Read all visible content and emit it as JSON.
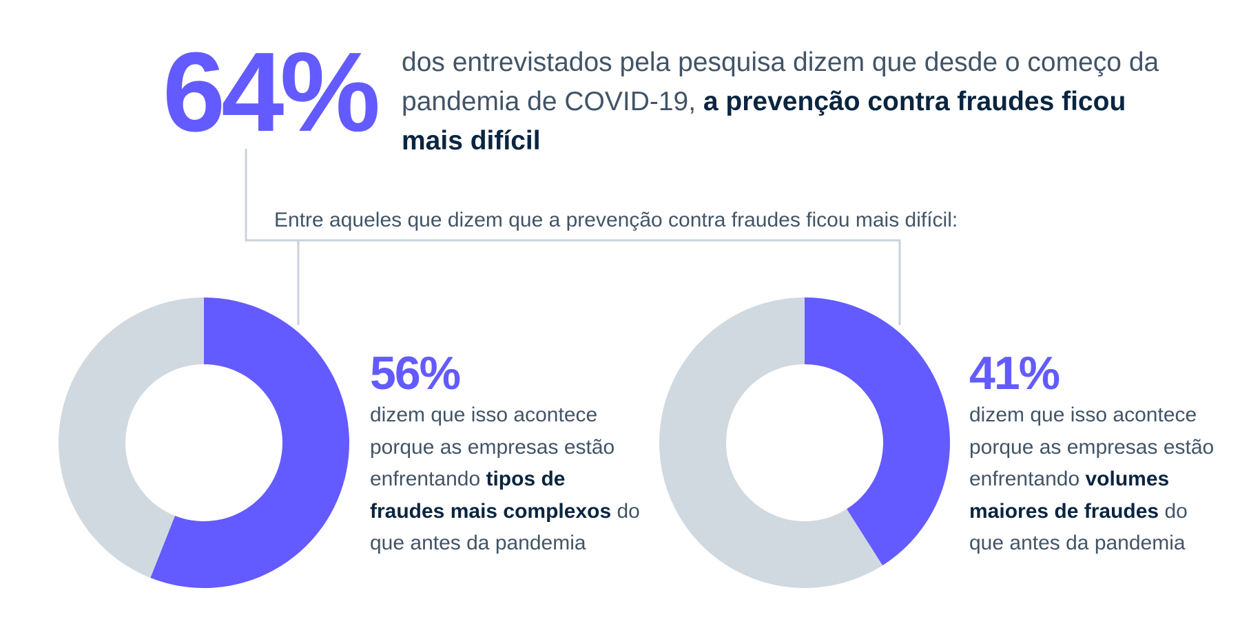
{
  "headline": {
    "value": "64%",
    "text_pre": "dos entrevistados pela pesquisa dizem que desde o começo da pandemia de COVID-19, ",
    "text_bold": "a prevenção contra fraudes ficou mais difícil"
  },
  "subheading": "Entre aqueles que dizem que a prevenção contra fraudes ficou mais difícil:",
  "colors": {
    "accent": "#635bff",
    "remainder": "#d1d9e0",
    "connector": "#c9d2dc",
    "text": "#425466",
    "text_bold": "#0a2540"
  },
  "stats": [
    {
      "value": "56%",
      "text_pre": "dizem que isso acontece porque as empresas estão enfrentando ",
      "text_bold": "tipos de fraudes mais complexos",
      "text_post": " do que antes da pandemia"
    },
    {
      "value": "41%",
      "text_pre": "dizem que isso acontece porque as empresas estão enfrentando ",
      "text_bold": "volumes maiores de fraudes",
      "text_post": " do que antes da pandemia"
    }
  ],
  "chart_data": [
    {
      "type": "pie",
      "labels": [
        "tipos de fraudes mais complexos",
        ""
      ],
      "values": [
        56,
        44
      ],
      "colors": [
        "#635bff",
        "#d1d9e0"
      ]
    },
    {
      "type": "pie",
      "labels": [
        "volumes maiores de fraudes",
        ""
      ],
      "values": [
        41,
        59
      ],
      "colors": [
        "#635bff",
        "#d1d9e0"
      ]
    }
  ]
}
